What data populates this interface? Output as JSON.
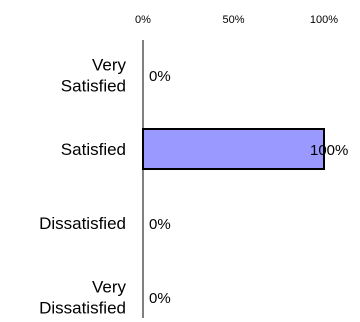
{
  "chart_data": {
    "type": "bar",
    "orientation": "horizontal",
    "categories": [
      [
        "Very",
        "Satisfied"
      ],
      [
        "Satisfied"
      ],
      [
        "Dissatisfied"
      ],
      [
        "Very",
        "Dissatisfied"
      ]
    ],
    "values": [
      0,
      100,
      0,
      0
    ],
    "value_labels": [
      "0%",
      "100%",
      "0%",
      "0%"
    ],
    "x_ticks": [
      0,
      50,
      100
    ],
    "x_tick_labels": [
      "0%",
      "50%",
      "100%"
    ],
    "xlim": [
      0,
      100
    ],
    "tick_position": "top",
    "grid": false,
    "legend": "none",
    "bar_color": "#9999ff",
    "bar_edge_color": "#000000",
    "title": "",
    "xlabel": "",
    "ylabel": ""
  }
}
